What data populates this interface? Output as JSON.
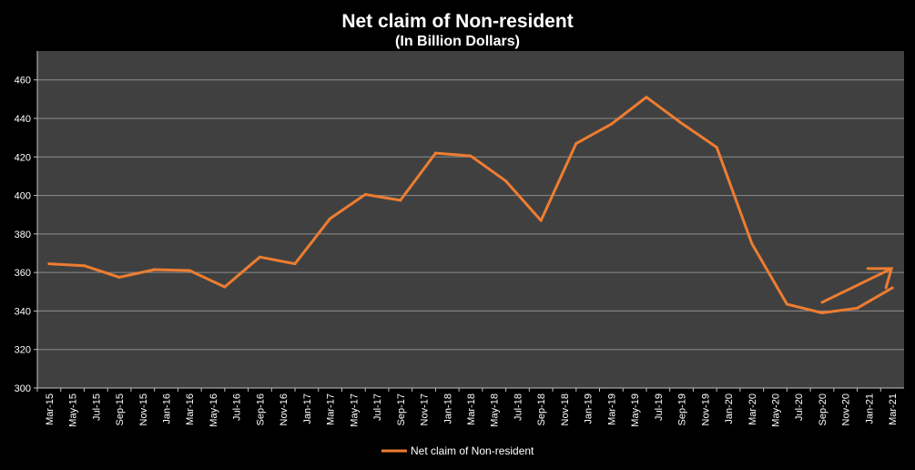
{
  "chart_data": {
    "type": "line",
    "title": "Net claim of Non-resident",
    "subtitle": "(In Billion Dollars)",
    "xlabel": "",
    "ylabel": "",
    "ylim": [
      300,
      475
    ],
    "yticks": [
      300,
      320,
      340,
      360,
      380,
      400,
      420,
      440,
      460
    ],
    "grid": true,
    "legend_position": "bottom",
    "categories": [
      "Mar-15",
      "May-15",
      "Jul-15",
      "Sep-15",
      "Nov-15",
      "Jan-16",
      "Mar-16",
      "May-16",
      "Jul-16",
      "Sep-16",
      "Nov-16",
      "Jan-17",
      "Mar-17",
      "May-17",
      "Jul-17",
      "Sep-17",
      "Nov-17",
      "Jan-18",
      "Mar-18",
      "May-18",
      "Jul-18",
      "Sep-18",
      "Nov-18",
      "Jan-19",
      "Mar-19",
      "May-19",
      "Jul-19",
      "Sep-19",
      "Nov-19",
      "Jan-20",
      "Mar-20",
      "May-20",
      "Jul-20",
      "Sep-20",
      "Nov-20",
      "Jan-21",
      "Mar-21"
    ],
    "series": [
      {
        "name": "Net claim of Non-resident",
        "color": "#ED7D31",
        "x": [
          "Mar-15",
          "Jun-15",
          "Sep-15",
          "Dec-15",
          "Mar-16",
          "Jun-16",
          "Sep-16",
          "Dec-16",
          "Mar-17",
          "Jun-17",
          "Sep-17",
          "Dec-17",
          "Mar-18",
          "Jun-18",
          "Sep-18",
          "Dec-18",
          "Mar-19",
          "Jun-19",
          "Sep-19",
          "Dec-19",
          "Mar-20",
          "Jun-20",
          "Sep-20",
          "Dec-20",
          "Mar-21"
        ],
        "values": [
          364.5,
          363.5,
          357.5,
          361.5,
          361,
          352.5,
          368,
          364.5,
          388,
          400.5,
          397.5,
          422,
          420.5,
          407.5,
          387,
          427,
          437,
          451,
          437.5,
          425,
          375,
          343.5,
          339,
          341.5,
          352
        ]
      }
    ],
    "annotation": {
      "type": "arrow",
      "color": "#ED7D31",
      "from": [
        "Sep-20",
        344.5
      ],
      "to": [
        "Mar-21",
        362
      ],
      "direction": "upward"
    }
  }
}
